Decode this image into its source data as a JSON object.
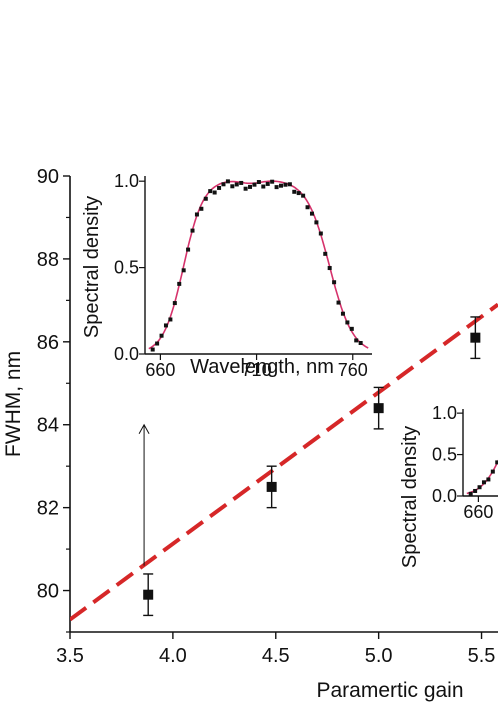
{
  "chart_data": [
    {
      "id": "main",
      "type": "scatter",
      "xlabel": "Paramertic gain",
      "ylabel": "FWHM, nm",
      "xlim": [
        3.5,
        5.58
      ],
      "ylim": [
        79,
        90
      ],
      "xticks": [
        "3.5",
        "4.0",
        "4.5",
        "5.0",
        "5.5"
      ],
      "xtick_values": [
        3.5,
        4.0,
        4.5,
        5.0,
        5.5
      ],
      "yticks": [
        "80",
        "82",
        "84",
        "86",
        "88",
        "90"
      ],
      "ytick_values": [
        80,
        82,
        84,
        86,
        88,
        90
      ],
      "points": [
        {
          "x": 3.88,
          "y": 79.9,
          "err": 0.5
        },
        {
          "x": 4.48,
          "y": 82.5,
          "err": 0.5
        },
        {
          "x": 5.0,
          "y": 84.4,
          "err": 0.5
        },
        {
          "x": 5.47,
          "y": 86.1,
          "err": 0.5
        }
      ],
      "fit_line": {
        "x": [
          3.5,
          5.58
        ],
        "y": [
          79.3,
          86.9
        ],
        "color": "#d62728",
        "style": "dashed"
      },
      "arrow": {
        "x": 3.86,
        "y_from": 80.6,
        "y_to": 84.0
      },
      "marker_color": "#111111"
    },
    {
      "id": "inset1",
      "type": "line",
      "xlabel": "Wavelength, nm",
      "ylabel": "Spectral density",
      "xlim": [
        652,
        770
      ],
      "ylim": [
        0,
        1.03
      ],
      "xticks": [
        "660",
        "710",
        "760"
      ],
      "xtick_values": [
        660,
        710,
        760
      ],
      "yticks": [
        "0.0",
        "0.5",
        "1.0"
      ],
      "ytick_values": [
        0,
        0.5,
        1.0
      ],
      "curve_color": "#d6336c",
      "marker_color": "#111111"
    },
    {
      "id": "inset2",
      "type": "line",
      "ylabel": "Spectral density",
      "xlim": [
        652,
        770
      ],
      "ylim": [
        0,
        1.05
      ],
      "xticks": [
        "660"
      ],
      "xtick_values": [
        660
      ],
      "yticks": [
        "0.0",
        "0.5",
        "1.0"
      ],
      "ytick_values": [
        0,
        0.5,
        1.0
      ],
      "curve_color": "#d6336c",
      "marker_color": "#111111"
    }
  ]
}
